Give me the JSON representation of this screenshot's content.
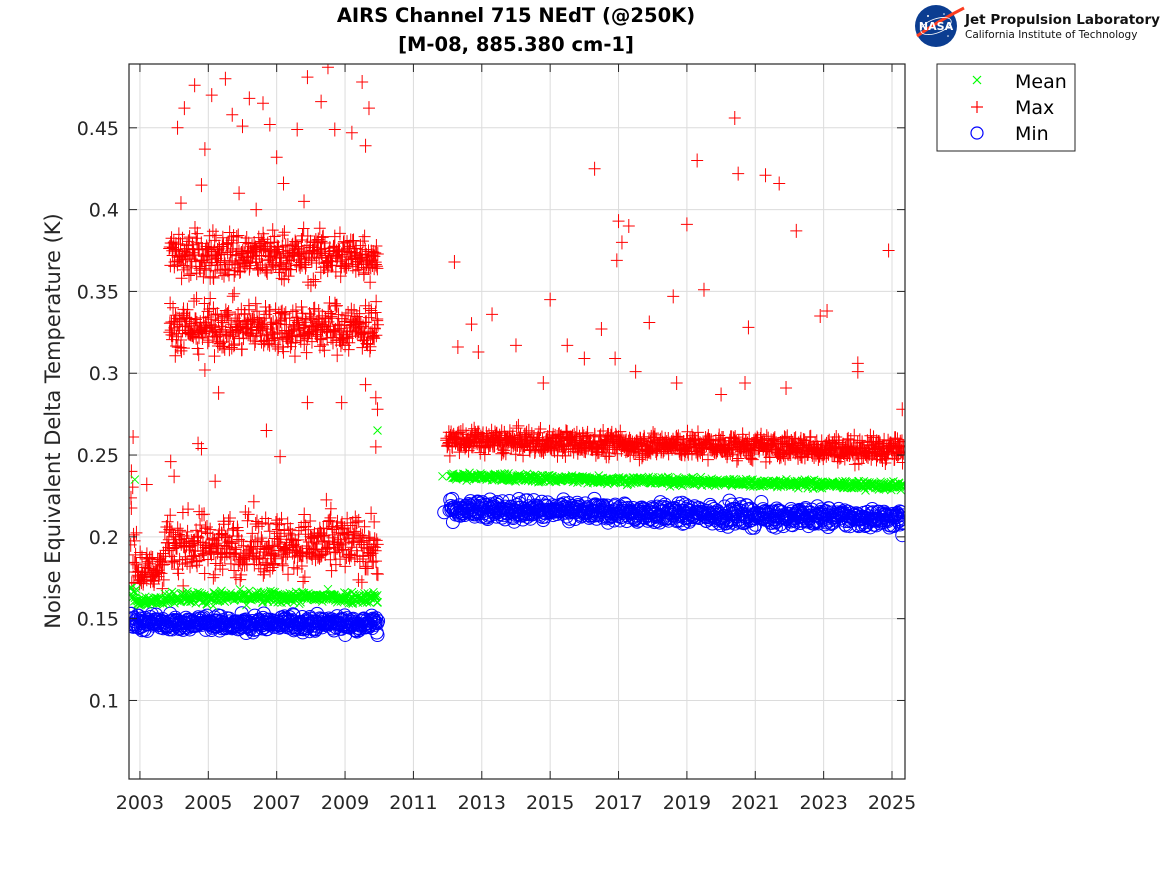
{
  "logo": {
    "agency": "NASA",
    "lab_name": "Jet Propulsion Laboratory",
    "lab_subtitle": "California Institute of Technology"
  },
  "chart_data": {
    "type": "scatter",
    "title": "AIRS Channel 715 NEdT (@250K)",
    "subtitle": "[M-08, 885.380 cm-1]",
    "xlabel": "",
    "ylabel": "Noise Equivalent Delta Temperature (K)",
    "xlim": [
      2002.68,
      2025.38
    ],
    "ylim": [
      0.052,
      0.489
    ],
    "xticks": [
      2003,
      2005,
      2007,
      2009,
      2011,
      2013,
      2015,
      2017,
      2019,
      2021,
      2023,
      2025
    ],
    "xtick_labels": [
      "2003",
      "2005",
      "2007",
      "2009",
      "2011",
      "2013",
      "2015",
      "2017",
      "2019",
      "2021",
      "2023",
      "2025"
    ],
    "yticks": [
      0.1,
      0.15,
      0.2,
      0.25,
      0.3,
      0.35,
      0.4,
      0.45
    ],
    "ytick_labels": [
      "0.1",
      "0.15",
      "0.2",
      "0.25",
      "0.3",
      "0.35",
      "0.4",
      "0.45"
    ],
    "grid": true,
    "legend_position": "outside-top-right",
    "colors": {
      "mean": "#00ff00",
      "max": "#ff0000",
      "min": "#0000ff",
      "grid": "#dcdcdc",
      "axis": "#262626"
    },
    "series": [
      {
        "name": "Mean",
        "marker": "x",
        "segments": [
          {
            "x_start": 2002.72,
            "x_end": 2002.9,
            "y_center": 0.165,
            "y_spread": 0.004
          },
          {
            "x_start": 2002.9,
            "x_end": 2003.72,
            "y_center": 0.161,
            "y_spread": 0.002
          },
          {
            "x_start": 2003.72,
            "x_end": 2009.97,
            "y_center": 0.163,
            "y_spread": 0.003
          },
          {
            "x_start": 2012.08,
            "x_end": 2025.35,
            "y_center_start": 0.237,
            "y_center_end": 0.231,
            "y_spread": 0.002
          }
        ],
        "outliers": [
          {
            "x": 2002.85,
            "y": 0.235
          },
          {
            "x": 2009.95,
            "y": 0.265
          },
          {
            "x": 2011.85,
            "y": 0.237
          },
          {
            "x": 2006.2,
            "y": 0.167
          },
          {
            "x": 2008.5,
            "y": 0.168
          }
        ]
      },
      {
        "name": "Max",
        "marker": "+",
        "segments": [
          {
            "x_start": 2002.72,
            "x_end": 2002.9,
            "y_center": 0.2,
            "y_spread": 0.03
          },
          {
            "x_start": 2002.9,
            "x_end": 2003.72,
            "y_center": 0.18,
            "y_spread": 0.008
          },
          {
            "x_start": 2003.72,
            "x_end": 2009.97,
            "y_center": 0.195,
            "y_spread": 0.015
          },
          {
            "x_start": 2003.85,
            "x_end": 2009.97,
            "y_center": 0.372,
            "y_spread": 0.012
          },
          {
            "x_start": 2003.85,
            "x_end": 2009.97,
            "y_center": 0.328,
            "y_spread": 0.012
          },
          {
            "x_start": 2011.95,
            "x_end": 2025.35,
            "y_center_start": 0.259,
            "y_center_end": 0.253,
            "y_spread": 0.006
          }
        ],
        "outliers": [
          {
            "x": 2002.8,
            "y": 0.261
          },
          {
            "x": 2002.75,
            "y": 0.24
          },
          {
            "x": 2003.2,
            "y": 0.232
          },
          {
            "x": 2004.1,
            "y": 0.45
          },
          {
            "x": 2004.3,
            "y": 0.462
          },
          {
            "x": 2004.6,
            "y": 0.476
          },
          {
            "x": 2004.9,
            "y": 0.437
          },
          {
            "x": 2005.1,
            "y": 0.47
          },
          {
            "x": 2005.5,
            "y": 0.48
          },
          {
            "x": 2005.7,
            "y": 0.458
          },
          {
            "x": 2006.0,
            "y": 0.451
          },
          {
            "x": 2006.2,
            "y": 0.468
          },
          {
            "x": 2006.6,
            "y": 0.465
          },
          {
            "x": 2006.8,
            "y": 0.452
          },
          {
            "x": 2007.0,
            "y": 0.432
          },
          {
            "x": 2007.6,
            "y": 0.449
          },
          {
            "x": 2007.9,
            "y": 0.481
          },
          {
            "x": 2008.3,
            "y": 0.466
          },
          {
            "x": 2008.5,
            "y": 0.487
          },
          {
            "x": 2008.7,
            "y": 0.449
          },
          {
            "x": 2009.2,
            "y": 0.447
          },
          {
            "x": 2009.5,
            "y": 0.478
          },
          {
            "x": 2009.6,
            "y": 0.439
          },
          {
            "x": 2009.7,
            "y": 0.462
          },
          {
            "x": 2004.2,
            "y": 0.404
          },
          {
            "x": 2004.8,
            "y": 0.415
          },
          {
            "x": 2005.9,
            "y": 0.41
          },
          {
            "x": 2007.2,
            "y": 0.416
          },
          {
            "x": 2006.4,
            "y": 0.4
          },
          {
            "x": 2007.8,
            "y": 0.405
          },
          {
            "x": 2004.9,
            "y": 0.302
          },
          {
            "x": 2005.3,
            "y": 0.288
          },
          {
            "x": 2006.7,
            "y": 0.265
          },
          {
            "x": 2007.1,
            "y": 0.249
          },
          {
            "x": 2007.9,
            "y": 0.282
          },
          {
            "x": 2008.9,
            "y": 0.282
          },
          {
            "x": 2009.6,
            "y": 0.293
          },
          {
            "x": 2009.9,
            "y": 0.285
          },
          {
            "x": 2009.95,
            "y": 0.278
          },
          {
            "x": 2009.9,
            "y": 0.255
          },
          {
            "x": 2004.7,
            "y": 0.257
          },
          {
            "x": 2004.8,
            "y": 0.254
          },
          {
            "x": 2005.2,
            "y": 0.234
          },
          {
            "x": 2003.9,
            "y": 0.246
          },
          {
            "x": 2004.0,
            "y": 0.237
          },
          {
            "x": 2012.2,
            "y": 0.368
          },
          {
            "x": 2012.3,
            "y": 0.316
          },
          {
            "x": 2012.7,
            "y": 0.33
          },
          {
            "x": 2012.9,
            "y": 0.313
          },
          {
            "x": 2013.3,
            "y": 0.336
          },
          {
            "x": 2014.0,
            "y": 0.317
          },
          {
            "x": 2014.8,
            "y": 0.294
          },
          {
            "x": 2015.0,
            "y": 0.345
          },
          {
            "x": 2015.5,
            "y": 0.317
          },
          {
            "x": 2016.0,
            "y": 0.309
          },
          {
            "x": 2016.3,
            "y": 0.425
          },
          {
            "x": 2016.5,
            "y": 0.327
          },
          {
            "x": 2016.9,
            "y": 0.309
          },
          {
            "x": 2017.0,
            "y": 0.393
          },
          {
            "x": 2017.1,
            "y": 0.38
          },
          {
            "x": 2017.3,
            "y": 0.39
          },
          {
            "x": 2016.95,
            "y": 0.369
          },
          {
            "x": 2017.5,
            "y": 0.301
          },
          {
            "x": 2017.9,
            "y": 0.331
          },
          {
            "x": 2018.6,
            "y": 0.347
          },
          {
            "x": 2019.0,
            "y": 0.391
          },
          {
            "x": 2019.3,
            "y": 0.43
          },
          {
            "x": 2019.5,
            "y": 0.351
          },
          {
            "x": 2020.4,
            "y": 0.456
          },
          {
            "x": 2020.5,
            "y": 0.422
          },
          {
            "x": 2020.8,
            "y": 0.328
          },
          {
            "x": 2020.7,
            "y": 0.294
          },
          {
            "x": 2021.3,
            "y": 0.421
          },
          {
            "x": 2021.7,
            "y": 0.416
          },
          {
            "x": 2021.9,
            "y": 0.291
          },
          {
            "x": 2022.2,
            "y": 0.387
          },
          {
            "x": 2022.9,
            "y": 0.335
          },
          {
            "x": 2023.1,
            "y": 0.338
          },
          {
            "x": 2024.0,
            "y": 0.306
          },
          {
            "x": 2024.0,
            "y": 0.301
          },
          {
            "x": 2024.9,
            "y": 0.375
          },
          {
            "x": 2025.3,
            "y": 0.278
          },
          {
            "x": 2018.7,
            "y": 0.294
          },
          {
            "x": 2020.0,
            "y": 0.287
          }
        ]
      },
      {
        "name": "Min",
        "marker": "o",
        "segments": [
          {
            "x_start": 2002.72,
            "x_end": 2003.72,
            "y_center": 0.148,
            "y_spread": 0.004
          },
          {
            "x_start": 2003.72,
            "x_end": 2009.97,
            "y_center": 0.147,
            "y_spread": 0.004
          },
          {
            "x_start": 2012.05,
            "x_end": 2025.35,
            "y_center_start": 0.217,
            "y_center_end": 0.211,
            "y_spread": 0.005
          }
        ],
        "outliers": [
          {
            "x": 2011.9,
            "y": 0.215
          },
          {
            "x": 2002.75,
            "y": 0.153
          },
          {
            "x": 2009.95,
            "y": 0.14
          },
          {
            "x": 2025.3,
            "y": 0.201
          }
        ]
      }
    ]
  }
}
